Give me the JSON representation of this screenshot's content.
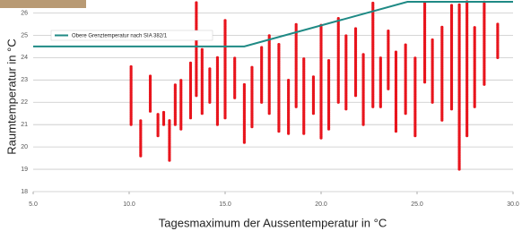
{
  "chart_data": {
    "type": "range",
    "x_label": "Tagesmaximum der Aussentemperatur in °C",
    "y_label": "Raumtemperatur in °C",
    "xlim": [
      5,
      30
    ],
    "xticks": [
      {
        "value": 5,
        "label": "5.0"
      },
      {
        "value": 10,
        "label": "10.0"
      },
      {
        "value": 15,
        "label": "15.0"
      },
      {
        "value": 20,
        "label": "20.0"
      },
      {
        "value": 25,
        "label": "25.0"
      },
      {
        "value": 30,
        "label": "30.0"
      }
    ],
    "ylim": [
      18,
      26.5
    ],
    "yticks": [
      18,
      19,
      20,
      21,
      22,
      23,
      24,
      25,
      26
    ],
    "grid": true,
    "color": "#e8141c",
    "x": [
      10.1,
      10.6,
      11.1,
      11.5,
      11.8,
      12.1,
      12.4,
      12.7,
      13.2,
      13.5,
      13.8,
      14.2,
      14.6,
      15.0,
      15.5,
      16.0,
      16.4,
      16.9,
      17.3,
      17.8,
      18.3,
      18.7,
      19.1,
      19.6,
      20.0,
      20.4,
      20.9,
      21.3,
      21.8,
      22.2,
      22.7,
      23.1,
      23.5,
      23.9,
      24.4,
      24.9,
      25.4,
      25.8,
      26.3,
      26.8,
      27.2,
      27.6,
      28.0,
      28.5,
      29.2
    ],
    "low": [
      21.0,
      19.6,
      21.6,
      20.5,
      21.0,
      19.4,
      21.0,
      20.8,
      21.3,
      22.3,
      21.5,
      22.0,
      21.0,
      21.3,
      22.2,
      20.2,
      20.9,
      22.0,
      21.5,
      20.7,
      20.6,
      21.8,
      20.6,
      21.5,
      20.4,
      20.8,
      22.0,
      21.7,
      22.3,
      21.0,
      21.8,
      21.8,
      22.6,
      20.7,
      21.5,
      20.5,
      22.9,
      22.0,
      21.2,
      21.7,
      19.0,
      20.5,
      21.8,
      22.8,
      24.0
    ],
    "high": [
      23.6,
      21.2,
      23.2,
      21.5,
      21.6,
      21.2,
      22.8,
      23.0,
      23.8,
      26.5,
      24.4,
      23.5,
      24.0,
      25.7,
      24.0,
      22.8,
      23.6,
      24.5,
      25.0,
      24.6,
      23.0,
      25.5,
      24.0,
      23.2,
      25.5,
      23.9,
      25.8,
      25.0,
      25.3,
      24.2,
      26.5,
      24.0,
      25.2,
      24.3,
      24.6,
      24.0,
      26.5,
      24.8,
      25.4,
      26.4,
      26.4,
      26.5,
      25.4,
      26.5,
      25.5
    ],
    "limit_line": {
      "name": "Obere Grenztemperatur nach SIA 382/1",
      "color": "#1f8a85",
      "x": [
        5,
        16,
        24.5,
        30
      ],
      "y": [
        24.5,
        24.5,
        26.5,
        26.5
      ]
    }
  }
}
